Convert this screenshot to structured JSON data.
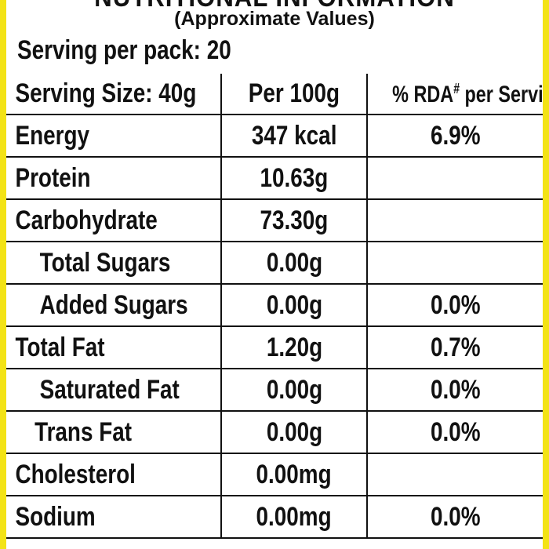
{
  "label": {
    "title": "NUTRITIONAL INFORMATION",
    "subtitle": "(Approximate Values)",
    "serving_per_pack": "Serving per pack: 20",
    "table": {
      "headers": {
        "serving_size": "Serving Size: 40g",
        "per_100g": "Per 100g",
        "rda_prefix": "% RDA",
        "rda_mark": "#",
        "rda_suffix": " per Serving"
      },
      "rows": [
        {
          "nutrient": "Energy",
          "per_100g": "347 kcal",
          "rda": "6.9%"
        },
        {
          "nutrient": "Protein",
          "per_100g": "10.63g",
          "rda": ""
        },
        {
          "nutrient": "Carbohydrate",
          "per_100g": "73.30g",
          "rda": ""
        },
        {
          "nutrient": "Total Sugars",
          "per_100g": "0.00g",
          "rda": ""
        },
        {
          "nutrient": "Added Sugars",
          "per_100g": "0.00g",
          "rda": "0.0%"
        },
        {
          "nutrient": "Total Fat",
          "per_100g": "1.20g",
          "rda": "0.7%"
        },
        {
          "nutrient": "Saturated Fat",
          "per_100g": "0.00g",
          "rda": "0.0%"
        },
        {
          "nutrient": "Trans Fat",
          "per_100g": "0.00g",
          "rda": "0.0%"
        },
        {
          "nutrient": "Cholesterol",
          "per_100g": "0.00mg",
          "rda": ""
        },
        {
          "nutrient": "Sodium",
          "per_100g": "0.00mg",
          "rda": "0.0%"
        }
      ]
    }
  },
  "colors": {
    "frame": "#f3e316",
    "background": "#ffffff",
    "text": "#111111"
  }
}
